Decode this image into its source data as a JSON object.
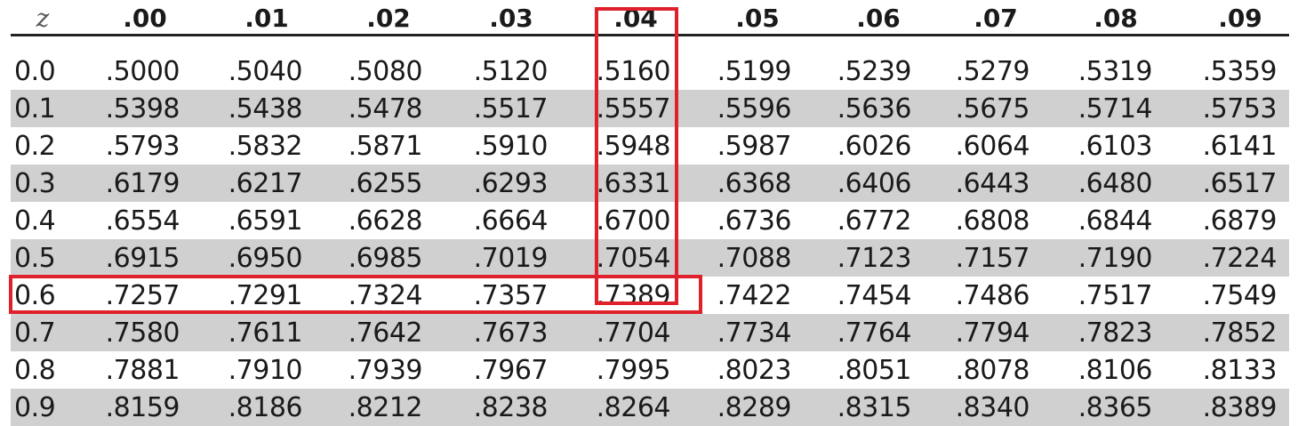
{
  "table": {
    "columns": [
      "z",
      ".00",
      ".01",
      ".02",
      ".03",
      ".04",
      ".05",
      ".06",
      ".07",
      ".08",
      ".09"
    ],
    "rows": [
      [
        "0.0",
        ".5000",
        ".5040",
        ".5080",
        ".5120",
        ".5160",
        ".5199",
        ".5239",
        ".5279",
        ".5319",
        ".5359"
      ],
      [
        "0.1",
        ".5398",
        ".5438",
        ".5478",
        ".5517",
        ".5557",
        ".5596",
        ".5636",
        ".5675",
        ".5714",
        ".5753"
      ],
      [
        "0.2",
        ".5793",
        ".5832",
        ".5871",
        ".5910",
        ".5948",
        ".5987",
        ".6026",
        ".6064",
        ".6103",
        ".6141"
      ],
      [
        "0.3",
        ".6179",
        ".6217",
        ".6255",
        ".6293",
        ".6331",
        ".6368",
        ".6406",
        ".6443",
        ".6480",
        ".6517"
      ],
      [
        "0.4",
        ".6554",
        ".6591",
        ".6628",
        ".6664",
        ".6700",
        ".6736",
        ".6772",
        ".6808",
        ".6844",
        ".6879"
      ],
      [
        "0.5",
        ".6915",
        ".6950",
        ".6985",
        ".7019",
        ".7054",
        ".7088",
        ".7123",
        ".7157",
        ".7190",
        ".7224"
      ],
      [
        "0.6",
        ".7257",
        ".7291",
        ".7324",
        ".7357",
        ".7389",
        ".7422",
        ".7454",
        ".7486",
        ".7517",
        ".7549"
      ],
      [
        "0.7",
        ".7580",
        ".7611",
        ".7642",
        ".7673",
        ".7704",
        ".7734",
        ".7764",
        ".7794",
        ".7823",
        ".7852"
      ],
      [
        "0.8",
        ".7881",
        ".7910",
        ".7939",
        ".7967",
        ".7995",
        ".8023",
        ".8051",
        ".8078",
        ".8106",
        ".8133"
      ],
      [
        "0.9",
        ".8159",
        ".8186",
        ".8212",
        ".8238",
        ".8264",
        ".8289",
        ".8315",
        ".8340",
        ".8365",
        ".8389"
      ]
    ],
    "shaded_rows": [
      1,
      3,
      5,
      7,
      9
    ],
    "highlight": {
      "column": ".04",
      "row": "0.6",
      "color": "#e0202a"
    }
  }
}
